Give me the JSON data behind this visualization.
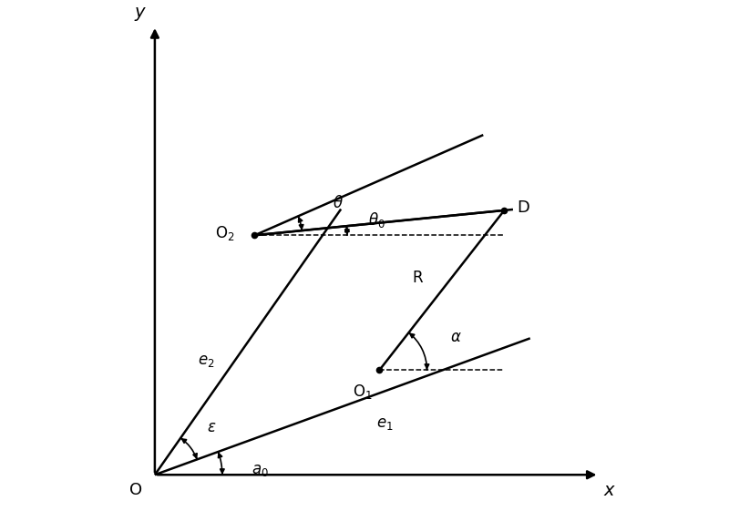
{
  "figsize": [
    8.0,
    5.61
  ],
  "dpi": 100,
  "bg_color": "#ffffff",
  "lc": "#000000",
  "O": [
    0.08,
    0.07
  ],
  "O1": [
    0.53,
    0.28
  ],
  "O2": [
    0.28,
    0.55
  ],
  "D": [
    0.78,
    0.6
  ],
  "a0_deg": 20,
  "e2_deg": 55,
  "theta_extra_deg": 18,
  "xlim": [
    0.0,
    1.0
  ],
  "ylim": [
    0.0,
    1.0
  ],
  "labels": {
    "O": "O",
    "x": "x",
    "y": "y",
    "O1": "O$_1$",
    "O2": "O$_2$",
    "D": "D",
    "e1": "$e_1$",
    "e2": "$e_2$",
    "epsilon": "$\\varepsilon$",
    "a0": "$a_0$",
    "theta": "$\\theta$",
    "theta0": "$\\theta_0$",
    "alpha": "$\\alpha$",
    "R": "R"
  }
}
